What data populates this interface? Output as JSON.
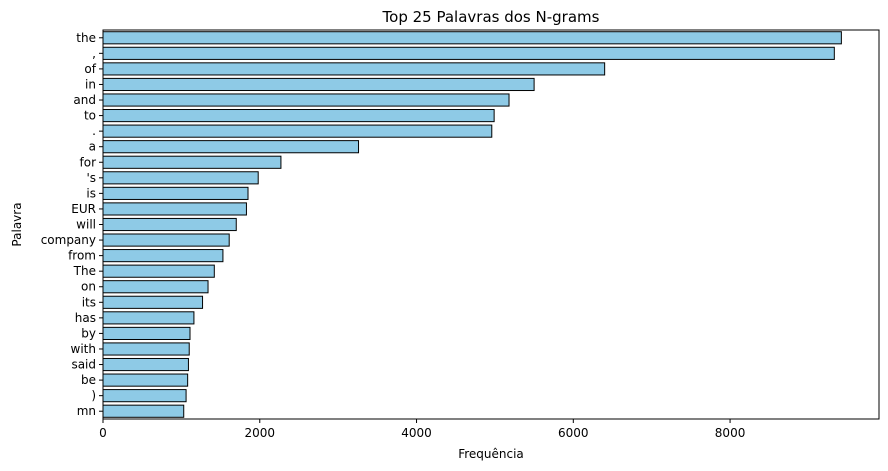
{
  "chart_data": {
    "type": "bar",
    "orientation": "horizontal",
    "title": "Top 25 Palavras dos N-grams",
    "xlabel": "Frequência",
    "ylabel": "Palavra",
    "xlim": [
      0,
      9900
    ],
    "xticks": [
      0,
      2000,
      4000,
      6000,
      8000
    ],
    "grid": false,
    "bar_color": "#8ecae6",
    "edge_color": "#000000",
    "categories": [
      "the",
      ",",
      "of",
      "in",
      "and",
      "to",
      ".",
      "a",
      "for",
      "'s",
      "is",
      "EUR",
      "will",
      "company",
      "from",
      "The",
      "on",
      "its",
      "has",
      "by",
      "with",
      "said",
      "be",
      ")",
      "mn"
    ],
    "values": [
      9420,
      9330,
      6400,
      5500,
      5180,
      4990,
      4960,
      3260,
      2270,
      1980,
      1850,
      1830,
      1700,
      1610,
      1530,
      1420,
      1340,
      1270,
      1160,
      1110,
      1100,
      1090,
      1080,
      1060,
      1030
    ]
  }
}
